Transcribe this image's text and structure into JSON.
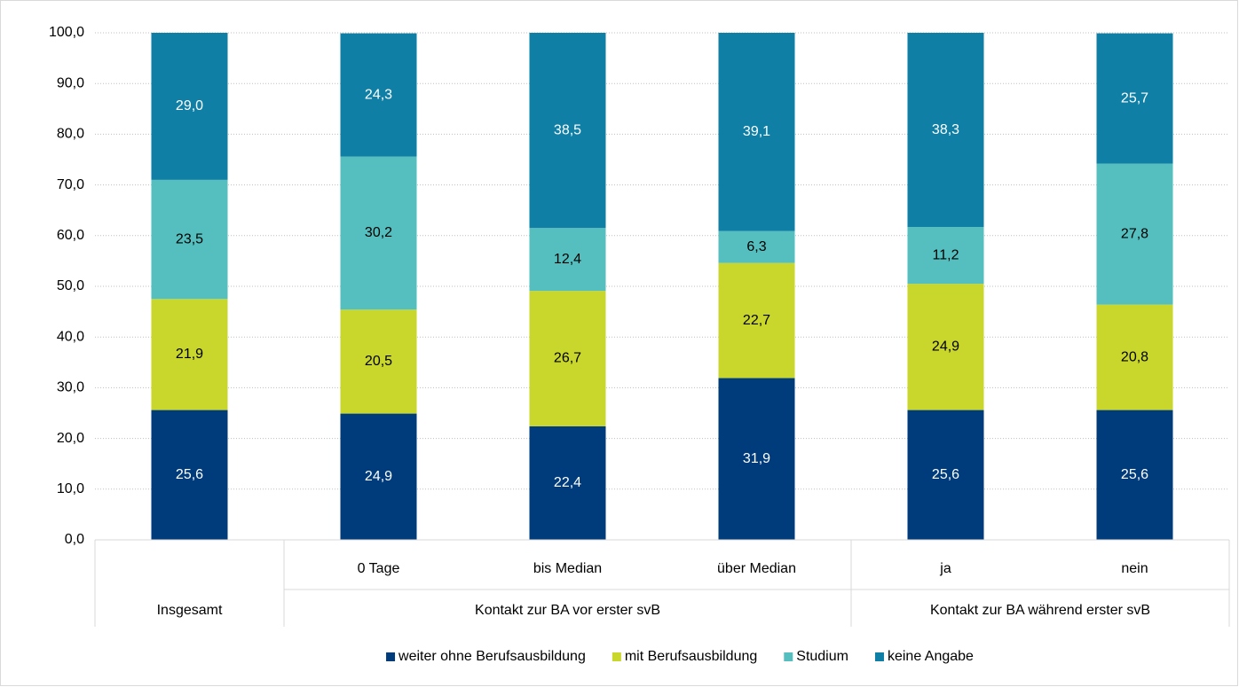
{
  "chart_data": {
    "type": "stacked_bar",
    "categories": [
      null,
      "0 Tage",
      "bis Median",
      "über Median",
      "ja",
      "nein"
    ],
    "groups": [
      {
        "name": "Insgesamt",
        "categories": [
          null
        ]
      },
      {
        "name": "Kontakt zur BA vor erster svB",
        "categories": [
          "0 Tage",
          "bis Median",
          "über Median"
        ]
      },
      {
        "name": "Kontakt zur BA während erster svB",
        "categories": [
          "ja",
          "nein"
        ]
      }
    ],
    "series": [
      {
        "name": "weiter ohne Berufsausbildung",
        "color": "#003b7b",
        "label_color": "#ffffff",
        "values": [
          25.6,
          24.9,
          22.4,
          31.9,
          25.6,
          25.6
        ],
        "value_labels": [
          "25,6",
          "24,9",
          "22,4",
          "31,9",
          "25,6",
          "25,6"
        ]
      },
      {
        "name": "mit Berufsausbildung",
        "color": "#c9d62c",
        "label_color": "#000000",
        "values": [
          21.9,
          20.5,
          26.7,
          22.7,
          24.9,
          20.8
        ],
        "value_labels": [
          "21,9",
          "20,5",
          "26,7",
          "22,7",
          "24,9",
          "20,8"
        ]
      },
      {
        "name": "Studium",
        "color": "#55bfbf",
        "label_color": "#000000",
        "values": [
          23.5,
          30.2,
          12.4,
          6.3,
          11.2,
          27.8
        ],
        "value_labels": [
          "23,5",
          "30,2",
          "12,4",
          "6,3",
          "11,2",
          "27,8"
        ]
      },
      {
        "name": "keine Angabe",
        "color": "#0f7fa6",
        "label_color": "#ffffff",
        "values": [
          29.0,
          24.3,
          38.5,
          39.1,
          38.3,
          25.7
        ],
        "value_labels": [
          "29,0",
          "24,3",
          "38,5",
          "39,1",
          "38,3",
          "25,7"
        ]
      }
    ],
    "ylim": [
      0,
      100
    ],
    "yticks": [
      {
        "value": 0,
        "label": "0,0"
      },
      {
        "value": 10,
        "label": "10,0"
      },
      {
        "value": 20,
        "label": "20,0"
      },
      {
        "value": 30,
        "label": "30,0"
      },
      {
        "value": 40,
        "label": "40,0"
      },
      {
        "value": 50,
        "label": "50,0"
      },
      {
        "value": 60,
        "label": "60,0"
      },
      {
        "value": 70,
        "label": "70,0"
      },
      {
        "value": 80,
        "label": "80,0"
      },
      {
        "value": 90,
        "label": "90,0"
      },
      {
        "value": 100,
        "label": "100,0"
      }
    ],
    "grid": true,
    "legend": "bottom"
  }
}
